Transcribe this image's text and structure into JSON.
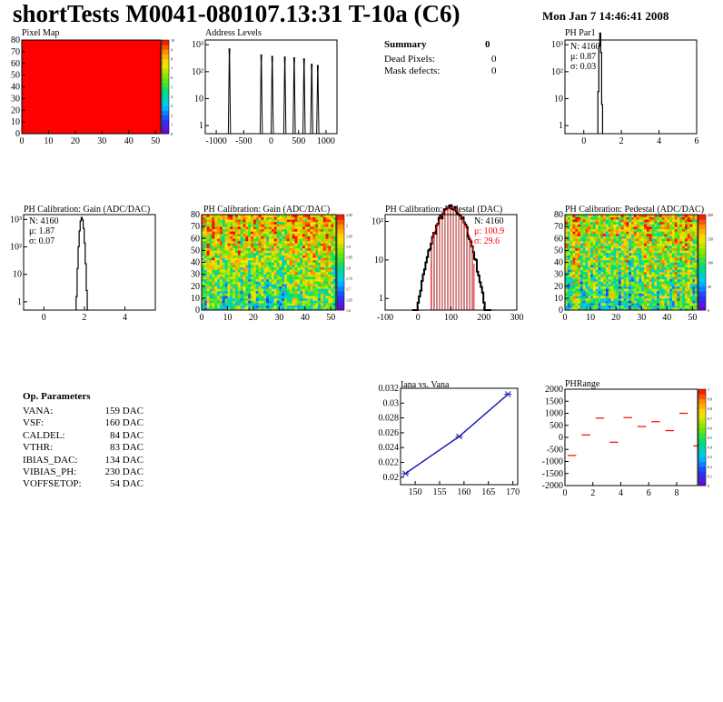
{
  "header": {
    "title": "shortTests M0041-080107.13:31 T-10a (C6)",
    "date": "Mon Jan  7 14:46:41 2008"
  },
  "summary": {
    "title": "Summary",
    "value": "0",
    "rows": [
      {
        "label": "Dead Pixels:",
        "value": "0"
      },
      {
        "label": "Mask defects:",
        "value": "0"
      }
    ]
  },
  "op_params": {
    "title": "Op. Parameters",
    "rows": [
      {
        "label": "VANA:",
        "value": "159 DAC"
      },
      {
        "label": "VSF:",
        "value": "160 DAC"
      },
      {
        "label": "CALDEL:",
        "value": "84 DAC"
      },
      {
        "label": "VTHR:",
        "value": "83 DAC"
      },
      {
        "label": "IBIAS_DAC:",
        "value": "134 DAC"
      },
      {
        "label": "VIBIAS_PH:",
        "value": "230 DAC"
      },
      {
        "label": "VOFFSETOP:",
        "value": "54 DAC"
      }
    ]
  },
  "colors": {
    "red": "#ff0000",
    "blue": "#2020b0",
    "darkred": "#a00000"
  },
  "chart_data": [
    {
      "id": "pixelmap",
      "type": "heatmap",
      "title": "Pixel Map",
      "xlim": [
        0,
        52
      ],
      "ylim": [
        0,
        80
      ],
      "xticks": [
        0,
        10,
        20,
        30,
        40,
        50
      ],
      "yticks": [
        0,
        10,
        20,
        30,
        40,
        50,
        60,
        70,
        80
      ],
      "fill_value": 10,
      "zlim": [
        0,
        10
      ],
      "zticks": [
        "0",
        "1",
        "2",
        "3",
        "4",
        "5",
        "6",
        "7",
        "8",
        "9",
        "10"
      ]
    },
    {
      "id": "address",
      "type": "bar",
      "title": "Address Levels",
      "xlim": [
        -1200,
        1200
      ],
      "ylog": true,
      "ylim": [
        0.5,
        1500
      ],
      "xticks": [
        -1000,
        -500,
        0,
        500,
        1000
      ],
      "yticks": [
        {
          "v": 1,
          "t": "1"
        },
        {
          "v": 10,
          "t": "10"
        },
        {
          "v": 100,
          "t": "10²"
        },
        {
          "v": 1000,
          "t": "10³"
        }
      ],
      "peaks": [
        {
          "x": -760,
          "y": 700
        },
        {
          "x": -180,
          "y": 420
        },
        {
          "x": 20,
          "y": 370
        },
        {
          "x": 250,
          "y": 350
        },
        {
          "x": 420,
          "y": 330
        },
        {
          "x": 600,
          "y": 300
        },
        {
          "x": 740,
          "y": 190
        },
        {
          "x": 850,
          "y": 170
        }
      ],
      "peak_width": 40
    },
    {
      "id": "phpar1",
      "type": "bar",
      "title": "PH Par1",
      "xlim": [
        -1,
        6
      ],
      "ylog": true,
      "ylim": [
        0.5,
        1500
      ],
      "xticks": [
        0,
        2,
        4,
        6
      ],
      "yticks": [
        {
          "v": 1,
          "t": "1"
        },
        {
          "v": 10,
          "t": "10"
        },
        {
          "v": 100,
          "t": "10²"
        },
        {
          "v": 1000,
          "t": "10³"
        }
      ],
      "stats": {
        "n": "N: 4160",
        "mu": "μ: 0.87",
        "sigma": "σ: 0.03"
      },
      "gauss": {
        "mean": 0.87,
        "sigma": 0.03,
        "n": 4160,
        "bin": 0.05
      }
    },
    {
      "id": "gain1d",
      "type": "bar",
      "title": "PH Calibration: Gain (ADC/DAC)",
      "xlim": [
        -1,
        5.5
      ],
      "ylog": true,
      "ylim": [
        0.5,
        1500
      ],
      "xticks": [
        0,
        2,
        4
      ],
      "yticks": [
        {
          "v": 1,
          "t": "1"
        },
        {
          "v": 10,
          "t": "10"
        },
        {
          "v": 100,
          "t": "10²"
        },
        {
          "v": 1000,
          "t": "10³"
        }
      ],
      "stats": {
        "n": "N: 4160",
        "mu": "μ: 1.87",
        "sigma": "σ: 0.07"
      },
      "gauss": {
        "mean": 1.87,
        "sigma": 0.07,
        "n": 4160,
        "bin": 0.05
      }
    },
    {
      "id": "gainmap",
      "type": "heatmap",
      "title": "PH Calibration: Gain (ADC/DAC)",
      "xlim": [
        0,
        52
      ],
      "ylim": [
        0,
        80
      ],
      "xticks": [
        0,
        10,
        20,
        30,
        40,
        50
      ],
      "yticks": [
        0,
        10,
        20,
        30,
        40,
        50,
        60,
        70,
        80
      ],
      "zlim": [
        1.6,
        2.05
      ],
      "zticks": [
        "1.6",
        "1.65",
        "1.7",
        "1.75",
        "1.8",
        "1.85",
        "1.9",
        "1.95",
        "2",
        "2.05"
      ]
    },
    {
      "id": "ped1d",
      "type": "bar",
      "title": "PH Calibration: Pedestal (DAC)",
      "xlim": [
        -100,
        300
      ],
      "ylog": true,
      "ylim": [
        0.5,
        150
      ],
      "xticks": [
        -100,
        0,
        100,
        200,
        300
      ],
      "yticks": [
        {
          "v": 1,
          "t": "1"
        },
        {
          "v": 10,
          "t": "10"
        },
        {
          "v": 100,
          "t": "10²"
        }
      ],
      "stats": {
        "n": "N: 4160",
        "mu": "μ: 100.9",
        "sigma": "σ: 29.6"
      },
      "gauss": {
        "mean": 100.9,
        "sigma": 29.6,
        "n": 4160,
        "bin": 4
      },
      "fit_range": [
        40,
        170
      ]
    },
    {
      "id": "pedmap",
      "type": "heatmap",
      "title": "PH Calibration: Pedestal (ADC/DAC)",
      "xlim": [
        0,
        52
      ],
      "ylim": [
        0,
        80
      ],
      "xticks": [
        0,
        10,
        20,
        30,
        40,
        50
      ],
      "yticks": [
        0,
        10,
        20,
        30,
        40,
        50,
        60,
        70,
        80
      ],
      "zlim": [
        0,
        200
      ],
      "zticks": [
        "0",
        "50",
        "100",
        "150",
        "200"
      ]
    },
    {
      "id": "iana",
      "type": "line",
      "title": "Iana vs. Vana",
      "xlim": [
        147,
        171
      ],
      "ylim": [
        0.019,
        0.032
      ],
      "xticks": [
        150,
        155,
        160,
        165,
        170
      ],
      "yticks": [
        0.02,
        0.022,
        0.024,
        0.026,
        0.028,
        0.03,
        0.032
      ],
      "x": [
        148,
        159,
        169
      ],
      "y": [
        0.0205,
        0.0255,
        0.0312
      ]
    },
    {
      "id": "phrange",
      "type": "scatter",
      "title": "PHRange",
      "xlim": [
        0,
        9.5
      ],
      "ylim": [
        -2000,
        2000
      ],
      "xticks": [
        0,
        2,
        4,
        6,
        8
      ],
      "yticks": [
        -2000,
        -1500,
        -1000,
        -500,
        0,
        500,
        1000,
        1500,
        2000
      ],
      "zlim": [
        0,
        1
      ],
      "zticks": [
        "0",
        "0.1",
        "0.2",
        "0.3",
        "0.4",
        "0.5",
        "0.6",
        "0.7",
        "0.8",
        "0.9",
        "1"
      ],
      "x": [
        0.5,
        1.5,
        2.5,
        3.5,
        4.5,
        5.5,
        6.5,
        7.5,
        8.5,
        9.5
      ],
      "y": [
        -750,
        100,
        800,
        -200,
        820,
        450,
        650,
        280,
        1000,
        -350
      ]
    }
  ]
}
